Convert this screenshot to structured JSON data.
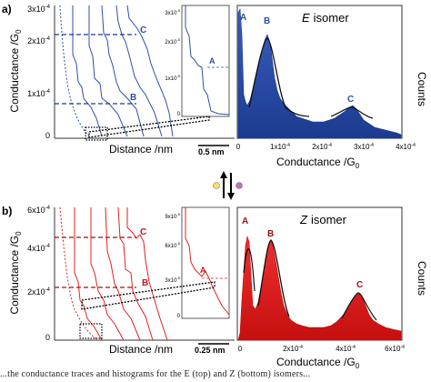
{
  "panels": {
    "a": {
      "label": "a)",
      "y_axis_label": "Conductance /G",
      "y_axis_sub": "0",
      "y_ticks": [
        "3x10",
        "2x10",
        "1x10",
        "0"
      ],
      "y_tick_exp": "-4",
      "x_axis_label": "Distance /nm",
      "scale_bar": "0.5 nm",
      "inset_ticks": [
        "3x10",
        "2x10",
        "1x10",
        "0"
      ],
      "inset_exp": "-5",
      "markers": [
        "A",
        "B",
        "C"
      ],
      "isomer_title": "E isomer",
      "isomer_letter": "E",
      "isomer_word": "isomer",
      "hist_xlabel": "Conductance /G",
      "hist_xlabel_sub": "0",
      "hist_ylabel": "Counts",
      "hist_x_ticks": [
        "0",
        "1x10",
        "2x10",
        "3x10",
        "4x10"
      ],
      "hist_x_exp": "-4",
      "peaks": [
        "A",
        "B",
        "C"
      ],
      "color": "#2f4fa8"
    },
    "b": {
      "label": "b)",
      "y_axis_label": "Conductance /G",
      "y_axis_sub": "0",
      "y_ticks": [
        "6x10",
        "4x10",
        "2x10",
        "0"
      ],
      "y_tick_exp": "-4",
      "x_axis_label": "Distance /nm",
      "scale_bar": "0.25 nm",
      "inset_ticks": [
        "9x10",
        "6x10",
        "3x10",
        "0"
      ],
      "inset_exp": "-5",
      "markers": [
        "A",
        "B",
        "C"
      ],
      "isomer_title": "Z isomer",
      "isomer_letter": "Z",
      "isomer_word": "isomer",
      "hist_xlabel": "Conductance /G",
      "hist_xlabel_sub": "0",
      "hist_ylabel": "Counts",
      "hist_x_ticks": [
        "0",
        "2x10",
        "4x10",
        "6x10"
      ],
      "hist_x_exp": "-4",
      "peaks": [
        "A",
        "B",
        "C"
      ],
      "color": "#e0221f"
    }
  },
  "caption": "...the conductance traces and histograms for the E (top) and Z (bottom) isomers..."
}
